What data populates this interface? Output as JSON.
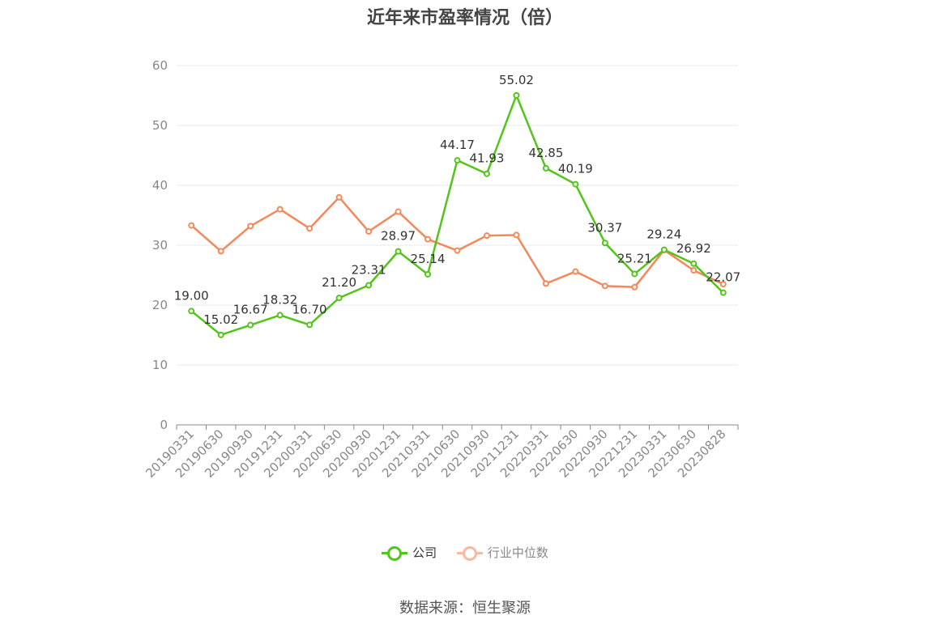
{
  "title": "近年来市盈率情况（倍）",
  "source": "数据来源：恒生聚源",
  "legend": [
    {
      "name": "公司",
      "color": "#52c41a",
      "text_color": "#333333"
    },
    {
      "name": "行业中位数",
      "color": "#f4885a",
      "icon_color": "#f8b9a0",
      "text_color": "#888888"
    }
  ],
  "chart_data": {
    "type": "line",
    "title": "近年来市盈率情况（倍）",
    "categories": [
      "20190331",
      "20190630",
      "20190930",
      "20191231",
      "20200331",
      "20200630",
      "20200930",
      "20201231",
      "20210331",
      "20210630",
      "20210930",
      "20211231",
      "20220331",
      "20220630",
      "20220930",
      "20221231",
      "20230331",
      "20230630",
      "20230828"
    ],
    "ylim": [
      0,
      60
    ],
    "yticks": [
      0,
      10,
      20,
      30,
      40,
      50,
      60
    ],
    "grid": true,
    "legend_position": "bottom",
    "series": [
      {
        "name": "公司",
        "color": "#52c41a",
        "labels": true,
        "values": [
          19.0,
          15.02,
          16.67,
          18.32,
          16.7,
          21.2,
          23.31,
          28.97,
          25.14,
          44.17,
          41.93,
          55.02,
          42.85,
          40.19,
          30.37,
          25.21,
          29.24,
          26.92,
          22.07
        ]
      },
      {
        "name": "行业中位数",
        "color": "#f4885a",
        "labels": false,
        "values": [
          33.3,
          29.0,
          33.2,
          36.0,
          32.8,
          38.0,
          32.3,
          35.6,
          31.0,
          29.1,
          31.6,
          31.7,
          23.6,
          25.6,
          23.2,
          23.0,
          29.2,
          25.8,
          23.5
        ]
      }
    ],
    "data_labels": [
      "19.00",
      "15.02",
      "16.67",
      "18.32",
      "16.70",
      "21.20",
      "23.31",
      "28.97",
      "25.14",
      "44.17",
      "41.93",
      "55.02",
      "42.85",
      "40.19",
      "30.37",
      "25.21",
      "29.24",
      "26.92",
      "22.07"
    ]
  }
}
